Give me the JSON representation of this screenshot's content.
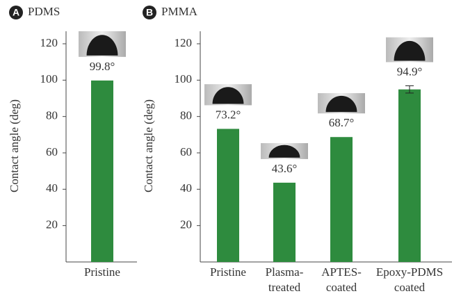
{
  "chart_data": [
    {
      "type": "bar",
      "panel": "A",
      "title": "PDMS",
      "ylabel": "Contact angle (deg)",
      "categories": [
        [
          "Pristine"
        ]
      ],
      "values": [
        99.8
      ],
      "value_labels": [
        "99.8°"
      ],
      "color": "#2e8b3e",
      "ylim": [
        0,
        120
      ],
      "yticks": [
        20,
        40,
        60,
        80,
        100,
        120
      ]
    },
    {
      "type": "bar",
      "panel": "B",
      "title": "PMMA",
      "ylabel": "Contact angle (deg)",
      "categories": [
        [
          "Pristine"
        ],
        [
          "Plasma-",
          "treated"
        ],
        [
          "APTES-",
          "coated"
        ],
        [
          "Epoxy-PDMS",
          "coated"
        ]
      ],
      "values": [
        73.2,
        43.6,
        68.7,
        94.9
      ],
      "value_labels": [
        "73.2°",
        "43.6°",
        "68.7°",
        "94.9°"
      ],
      "errors": [
        null,
        null,
        null,
        2
      ],
      "color": "#2e8b3e",
      "ylim": [
        0,
        120
      ],
      "yticks": [
        20,
        40,
        60,
        80,
        100,
        120
      ]
    }
  ]
}
